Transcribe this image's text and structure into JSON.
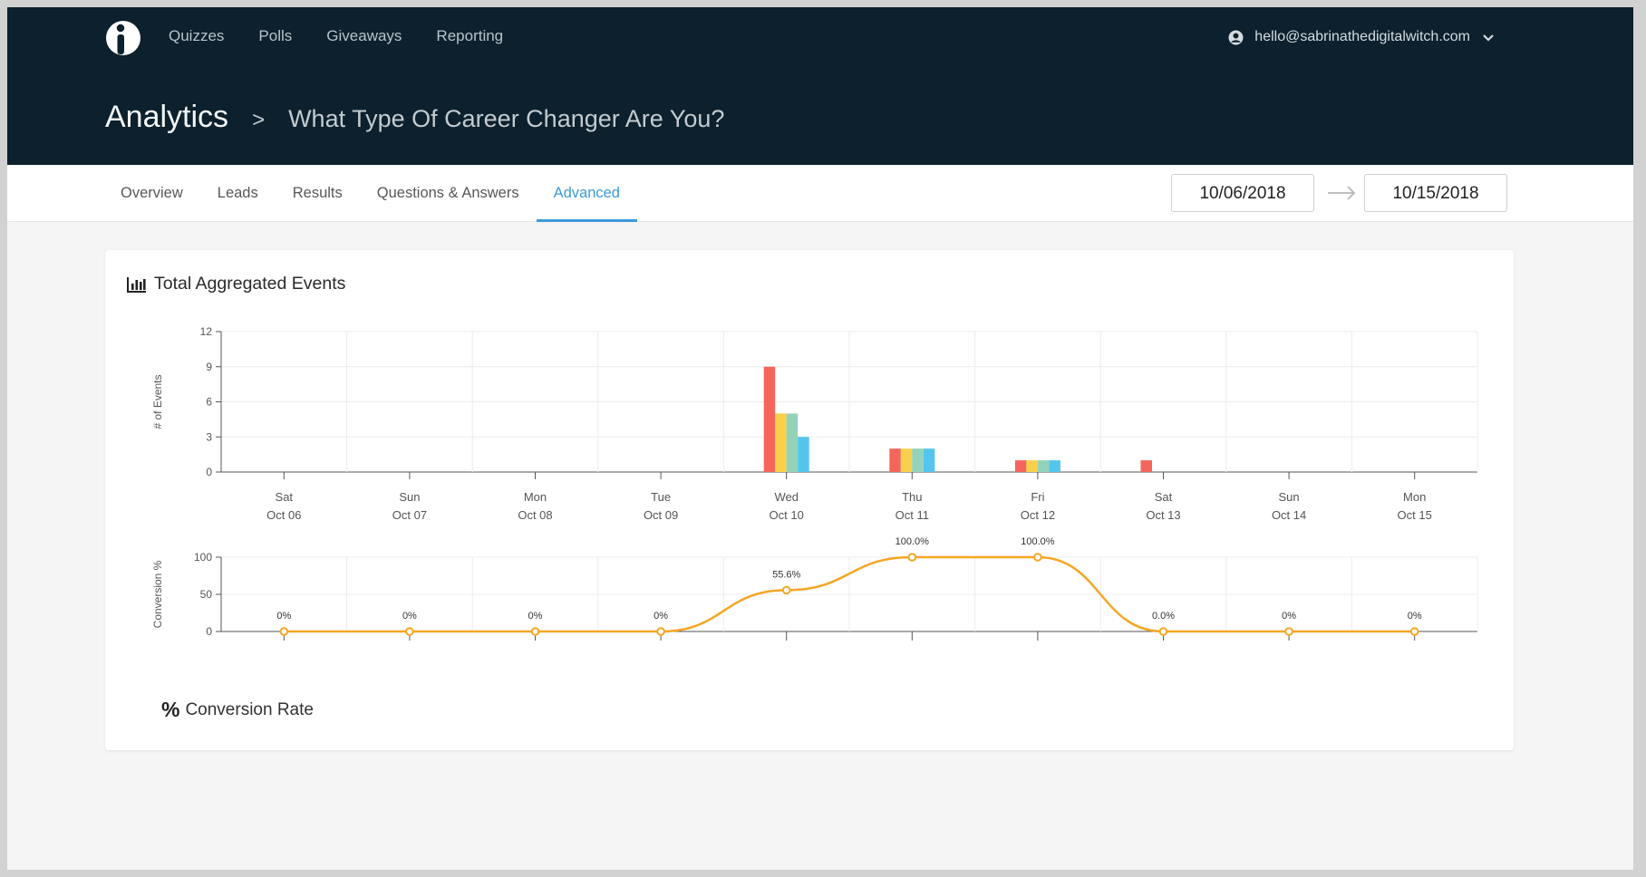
{
  "topnav": {
    "items": [
      "Quizzes",
      "Polls",
      "Giveaways",
      "Reporting"
    ]
  },
  "user": {
    "email": "hello@sabrinathedigitalwitch.com",
    "icon": "user-icon"
  },
  "header": {
    "title": "Analytics",
    "separator": ">",
    "subtitle": "What Type Of Career Changer Are You?"
  },
  "tabs": [
    {
      "label": "Overview",
      "active": false
    },
    {
      "label": "Leads",
      "active": false
    },
    {
      "label": "Results",
      "active": false
    },
    {
      "label": "Questions & Answers",
      "active": false
    },
    {
      "label": "Advanced",
      "active": true
    }
  ],
  "date_range": {
    "start": "10/06/2018",
    "end": "10/15/2018"
  },
  "panel": {
    "title": "Total Aggregated Events",
    "conversion_title": "Conversion Rate",
    "conversion_symbol": "%"
  },
  "colors": {
    "topbar": "#0c202d",
    "accent": "#3a9bd9",
    "line": "#f5a623"
  },
  "chart_data": [
    {
      "type": "bar",
      "ylabel": "# of Events",
      "ylim": [
        0,
        12
      ],
      "yticks": [
        0,
        3,
        6,
        9,
        12
      ],
      "categories": [
        {
          "day": "Sat",
          "date": "Oct 06"
        },
        {
          "day": "Sun",
          "date": "Oct 07"
        },
        {
          "day": "Mon",
          "date": "Oct 08"
        },
        {
          "day": "Tue",
          "date": "Oct 09"
        },
        {
          "day": "Wed",
          "date": "Oct 10"
        },
        {
          "day": "Thu",
          "date": "Oct 11"
        },
        {
          "day": "Fri",
          "date": "Oct 12"
        },
        {
          "day": "Sat",
          "date": "Oct 13"
        },
        {
          "day": "Sun",
          "date": "Oct 14"
        },
        {
          "day": "Mon",
          "date": "Oct 15"
        }
      ],
      "series": [
        {
          "color": "#f4665c",
          "values": [
            0,
            0,
            0,
            0,
            9,
            2,
            1,
            1,
            0,
            0
          ]
        },
        {
          "color": "#f9d04b",
          "values": [
            0,
            0,
            0,
            0,
            5,
            2,
            1,
            0,
            0,
            0
          ]
        },
        {
          "color": "#94d3b9",
          "values": [
            0,
            0,
            0,
            0,
            5,
            2,
            1,
            0,
            0,
            0
          ]
        },
        {
          "color": "#54c6ee",
          "values": [
            0,
            0,
            0,
            0,
            3,
            2,
            1,
            0,
            0,
            0
          ]
        }
      ],
      "grid": true
    },
    {
      "type": "line",
      "ylabel": "Conversion %",
      "ylim": [
        0,
        100
      ],
      "yticks": [
        0,
        50,
        100
      ],
      "values": [
        0,
        0,
        0,
        0,
        55.6,
        100,
        100,
        0,
        0,
        0
      ],
      "labels": [
        "0%",
        "0%",
        "0%",
        "0%",
        "55.6%",
        "100.0%",
        "100.0%",
        "0.0%",
        "0%",
        "0%"
      ],
      "color": "#f5a623",
      "grid": true
    }
  ]
}
